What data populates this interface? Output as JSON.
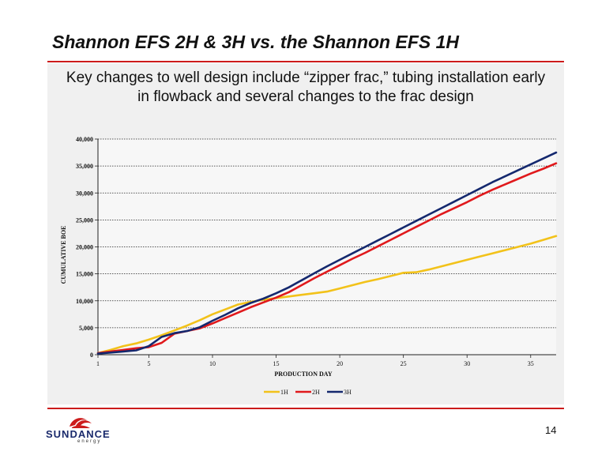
{
  "slide": {
    "title": "Shannon EFS 2H & 3H vs. the Shannon EFS 1H",
    "subtitle_line1": "Key changes to well design include “zipper frac,” tubing installation early",
    "subtitle_line2": "in flowback and several changes to the frac design",
    "page_number": "14",
    "accent_color": "#cc1b1b",
    "panel_color": "#f0f0f0"
  },
  "logo": {
    "word": "SUNDANCE",
    "sub": "energy",
    "icon": "sundance-logo-icon"
  },
  "chart_data": {
    "type": "line",
    "xlabel": "PRODUCTION DAY",
    "ylabel": "CUMULATIVE BOE",
    "xlim": [
      1,
      37
    ],
    "ylim": [
      0,
      40000
    ],
    "x_ticks": [
      1,
      5,
      10,
      15,
      20,
      25,
      30,
      35
    ],
    "y_ticks": [
      0,
      5000,
      10000,
      15000,
      20000,
      25000,
      30000,
      35000,
      40000
    ],
    "y_tick_labels": [
      "0",
      "5,000",
      "10,000",
      "15,000",
      "20,000",
      "25,000",
      "30,000",
      "35,000",
      "40,000"
    ],
    "grid": "horizontal dotted",
    "legend_position": "bottom",
    "x": [
      1,
      2,
      3,
      4,
      5,
      6,
      7,
      8,
      9,
      10,
      11,
      12,
      13,
      14,
      15,
      16,
      17,
      18,
      19,
      20,
      21,
      22,
      23,
      24,
      25,
      26,
      27,
      28,
      29,
      30,
      31,
      32,
      33,
      34,
      35,
      36,
      37
    ],
    "series": [
      {
        "name": "1H",
        "color": "#f2c21a",
        "values": [
          300,
          900,
          1600,
          2100,
          2800,
          3600,
          4500,
          5400,
          6400,
          7500,
          8400,
          9300,
          9800,
          10200,
          10500,
          10800,
          11100,
          11400,
          11700,
          12300,
          12900,
          13500,
          14000,
          14600,
          15200,
          15300,
          15800,
          16400,
          17000,
          17600,
          18200,
          18800,
          19400,
          20000,
          20600,
          21300,
          22000
        ]
      },
      {
        "name": "2H",
        "color": "#e0191c",
        "values": [
          300,
          600,
          900,
          1200,
          1400,
          2200,
          3900,
          4400,
          4900,
          5800,
          6800,
          7800,
          8800,
          9700,
          10600,
          11600,
          12900,
          14200,
          15400,
          16600,
          17800,
          18900,
          20100,
          21300,
          22500,
          23700,
          24900,
          26100,
          27200,
          28300,
          29500,
          30600,
          31600,
          32600,
          33600,
          34500,
          35500
        ]
      },
      {
        "name": "3H",
        "color": "#14286e",
        "values": [
          200,
          400,
          600,
          800,
          1600,
          3300,
          4000,
          4400,
          5100,
          6300,
          7400,
          8600,
          9600,
          10400,
          11400,
          12500,
          13800,
          15100,
          16400,
          17600,
          18800,
          20000,
          21200,
          22400,
          23600,
          24800,
          26000,
          27200,
          28400,
          29600,
          30800,
          32000,
          33100,
          34200,
          35300,
          36400,
          37500
        ]
      }
    ]
  }
}
